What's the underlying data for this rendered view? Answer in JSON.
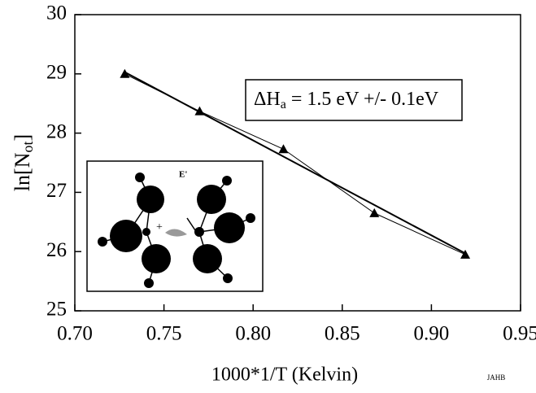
{
  "chart_data": {
    "type": "line",
    "xlabel": "1000*1/T (Kelvin)",
    "ylabel": {
      "main": "ln[N",
      "sub": "ot",
      "close": "]"
    },
    "annotation": {
      "main": "ΔH",
      "sub": "a",
      "rest": " = 1.5 eV +/- 0.1eV"
    },
    "inset_label": "E'",
    "corner_note": "JAHB",
    "x": [
      0.728,
      0.77,
      0.817,
      0.868,
      0.919
    ],
    "series": [
      {
        "color": "#000000",
        "marker": "triangle",
        "values": [
          29.0,
          28.37,
          27.73,
          26.65,
          25.95
        ]
      },
      {
        "color": "#000000",
        "marker": "none",
        "x": [
          0.728,
          0.919
        ],
        "values": [
          29.03,
          25.97
        ]
      }
    ],
    "xlim": [
      0.7,
      0.95
    ],
    "xticks": [
      {
        "value": 0.7,
        "label": "0.70"
      },
      {
        "value": 0.75,
        "label": "0.75"
      },
      {
        "value": 0.8,
        "label": "0.80"
      },
      {
        "value": 0.85,
        "label": "0.85"
      },
      {
        "value": 0.9,
        "label": "0.90"
      },
      {
        "value": 0.95,
        "label": "0.95"
      }
    ],
    "ylim": [
      25,
      30
    ],
    "yticks": [
      25,
      26,
      27,
      28,
      29,
      30
    ]
  }
}
